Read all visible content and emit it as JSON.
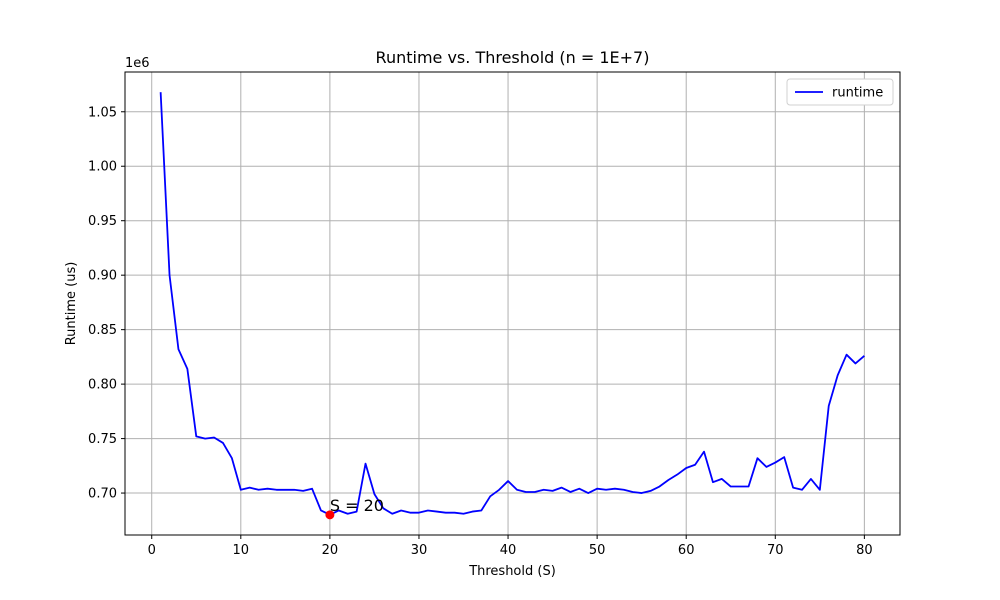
{
  "chart_data": {
    "type": "line",
    "title": "Runtime vs. Threshold (n = 1E+7)",
    "xlabel": "Threshold (S)",
    "ylabel": "Runtime (us)",
    "y_offset_label": "1e6",
    "xlim": [
      -3,
      84
    ],
    "ylim": [
      0.6615,
      1.0865
    ],
    "x_ticks": [
      0,
      10,
      20,
      30,
      40,
      50,
      60,
      70,
      80
    ],
    "x_tick_labels": [
      "0",
      "10",
      "20",
      "30",
      "40",
      "50",
      "60",
      "70",
      "80"
    ],
    "y_ticks": [
      0.7,
      0.75,
      0.8,
      0.85,
      0.9,
      0.95,
      1.0,
      1.05
    ],
    "y_tick_labels": [
      "0.70",
      "0.75",
      "0.80",
      "0.85",
      "0.90",
      "0.95",
      "1.00",
      "1.05"
    ],
    "grid": true,
    "legend": {
      "position": "top-right",
      "entries": [
        "runtime"
      ]
    },
    "series": [
      {
        "name": "runtime",
        "color": "#0000ff",
        "x": [
          1,
          2,
          3,
          4,
          5,
          6,
          7,
          8,
          9,
          10,
          11,
          12,
          13,
          14,
          15,
          16,
          17,
          18,
          19,
          20,
          21,
          22,
          23,
          24,
          25,
          26,
          27,
          28,
          29,
          30,
          31,
          32,
          33,
          34,
          35,
          36,
          37,
          38,
          39,
          40,
          41,
          42,
          43,
          44,
          45,
          46,
          47,
          48,
          49,
          50,
          51,
          52,
          53,
          54,
          55,
          56,
          57,
          58,
          59,
          60,
          61,
          62,
          63,
          64,
          65,
          66,
          67,
          68,
          69,
          70,
          71,
          72,
          73,
          74,
          75,
          76,
          77,
          78,
          79,
          80
        ],
        "y": [
          1.068,
          0.9,
          0.832,
          0.814,
          0.752,
          0.75,
          0.751,
          0.746,
          0.732,
          0.703,
          0.705,
          0.703,
          0.704,
          0.703,
          0.703,
          0.703,
          0.702,
          0.704,
          0.684,
          0.68,
          0.684,
          0.681,
          0.683,
          0.727,
          0.699,
          0.686,
          0.681,
          0.684,
          0.682,
          0.682,
          0.684,
          0.683,
          0.682,
          0.682,
          0.681,
          0.683,
          0.684,
          0.697,
          0.703,
          0.711,
          0.703,
          0.701,
          0.701,
          0.703,
          0.702,
          0.705,
          0.701,
          0.704,
          0.7,
          0.704,
          0.703,
          0.704,
          0.703,
          0.701,
          0.7,
          0.702,
          0.706,
          0.712,
          0.717,
          0.723,
          0.726,
          0.738,
          0.71,
          0.713,
          0.706,
          0.706,
          0.706,
          0.732,
          0.724,
          0.728,
          0.733,
          0.705,
          0.703,
          0.713,
          0.703,
          0.78,
          0.808,
          0.827,
          0.819,
          0.826
        ]
      }
    ],
    "annotation": {
      "x": 20,
      "y": 0.68,
      "text": "S = 20",
      "color": "#ff0000"
    }
  }
}
